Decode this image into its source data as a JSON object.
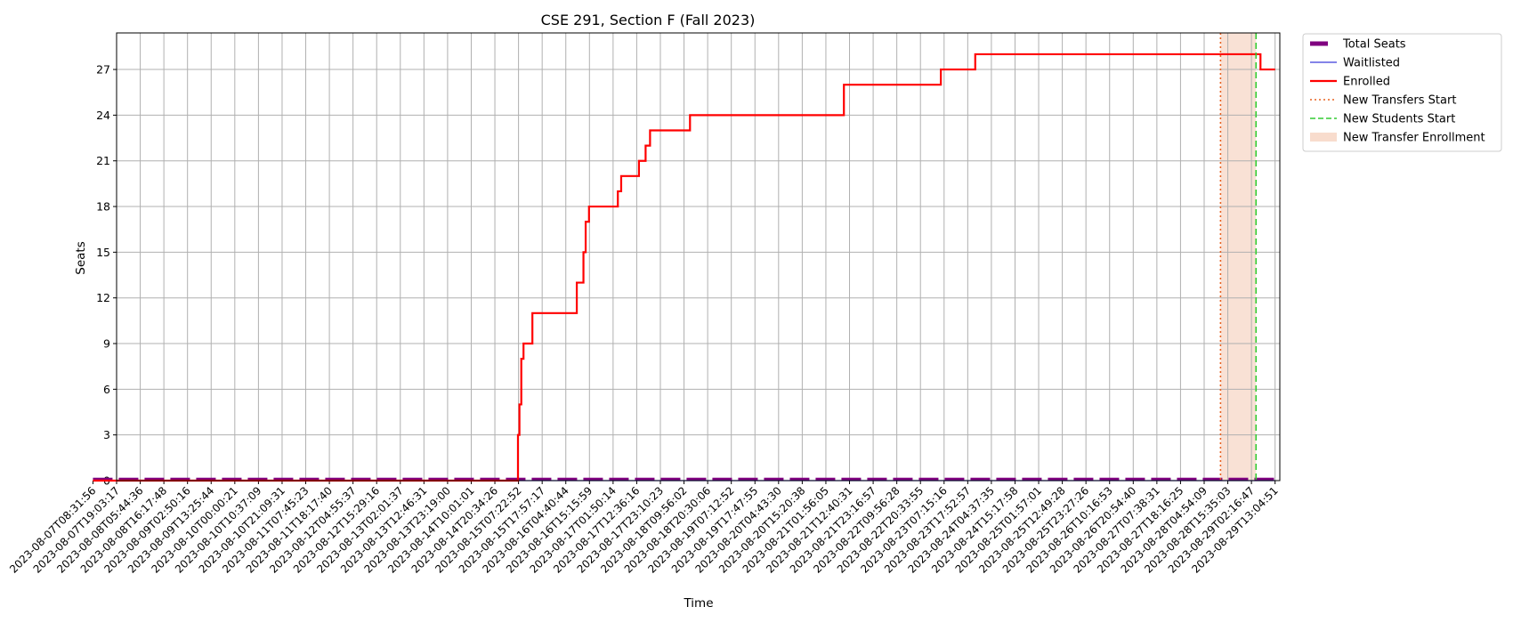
{
  "chart_data": {
    "type": "line",
    "title": "CSE 291, Section F (Fall 2023)",
    "xlabel": "Time",
    "ylabel": "Seats",
    "ylim": [
      0,
      29.4
    ],
    "yticks": [
      0,
      3,
      6,
      9,
      12,
      15,
      18,
      21,
      24,
      27
    ],
    "grid": true,
    "legend_position": "outside top-right",
    "x_ticks": [
      "2023-08-07T08:31:56",
      "2023-08-07T19:03:17",
      "2023-08-08T05:44:36",
      "2023-08-08T16:17:48",
      "2023-08-09T02:50:16",
      "2023-08-09T13:25:44",
      "2023-08-10T00:00:21",
      "2023-08-10T10:37:09",
      "2023-08-10T21:09:31",
      "2023-08-11T07:45:23",
      "2023-08-11T18:17:40",
      "2023-08-12T04:55:37",
      "2023-08-12T15:29:16",
      "2023-08-13T02:01:37",
      "2023-08-13T12:46:31",
      "2023-08-13T23:19:00",
      "2023-08-14T10:01:01",
      "2023-08-14T20:34:26",
      "2023-08-15T07:22:52",
      "2023-08-15T17:57:17",
      "2023-08-16T04:40:44",
      "2023-08-16T15:15:59",
      "2023-08-17T01:50:14",
      "2023-08-17T12:36:16",
      "2023-08-17T23:10:23",
      "2023-08-18T09:56:02",
      "2023-08-18T20:30:06",
      "2023-08-19T07:12:52",
      "2023-08-19T17:47:55",
      "2023-08-20T04:43:30",
      "2023-08-20T15:20:38",
      "2023-08-21T01:56:05",
      "2023-08-21T12:40:31",
      "2023-08-21T23:16:57",
      "2023-08-22T09:56:28",
      "2023-08-22T20:33:55",
      "2023-08-23T07:15:16",
      "2023-08-23T17:52:57",
      "2023-08-24T04:37:35",
      "2023-08-24T15:17:58",
      "2023-08-25T01:57:01",
      "2023-08-25T12:49:28",
      "2023-08-25T23:27:26",
      "2023-08-26T10:16:53",
      "2023-08-26T20:54:40",
      "2023-08-27T07:38:31",
      "2023-08-27T18:16:25",
      "2023-08-28T04:54:09",
      "2023-08-28T15:35:03",
      "2023-08-29T02:16:47",
      "2023-08-29T13:04:51"
    ],
    "x_range": [
      "2023-08-07T08:31:56",
      "2023-08-29T13:04:51"
    ],
    "series": [
      {
        "name": "Total Seats",
        "color": "#800080",
        "style": "dashed-thick",
        "points": [
          [
            "2023-08-07T08:31:56",
            0
          ],
          [
            "2023-08-29T13:04:51",
            0
          ]
        ]
      },
      {
        "name": "Waitlisted",
        "color": "#3b3bd9",
        "style": "solid-thin",
        "points": [
          [
            "2023-08-07T08:31:56",
            0
          ],
          [
            "2023-08-29T13:04:51",
            0
          ]
        ]
      },
      {
        "name": "Enrolled",
        "color": "#ff0000",
        "style": "steps",
        "points": [
          [
            "2023-08-07T08:31:56",
            0
          ],
          [
            "2023-08-15T07:22:52",
            0
          ],
          [
            "2023-08-15T08:00:00",
            3
          ],
          [
            "2023-08-15T08:40:00",
            5
          ],
          [
            "2023-08-15T09:30:00",
            8
          ],
          [
            "2023-08-15T10:30:00",
            9
          ],
          [
            "2023-08-15T14:30:00",
            11
          ],
          [
            "2023-08-16T10:30:00",
            13
          ],
          [
            "2023-08-16T13:30:00",
            15
          ],
          [
            "2023-08-16T14:30:00",
            17
          ],
          [
            "2023-08-16T16:00:00",
            18
          ],
          [
            "2023-08-17T05:00:00",
            19
          ],
          [
            "2023-08-17T06:30:00",
            20
          ],
          [
            "2023-08-17T14:30:00",
            21
          ],
          [
            "2023-08-17T17:30:00",
            22
          ],
          [
            "2023-08-17T19:30:00",
            23
          ],
          [
            "2023-08-18T13:30:00",
            24
          ],
          [
            "2023-08-21T10:50:00",
            26
          ],
          [
            "2023-08-23T06:30:00",
            27
          ],
          [
            "2023-08-23T22:00:00",
            28
          ],
          [
            "2023-08-29T06:30:00",
            27
          ],
          [
            "2023-08-29T13:04:51",
            27
          ]
        ]
      }
    ],
    "vlines": [
      {
        "name": "New Transfers Start",
        "x": "2023-08-28T12:30:00",
        "color": "#e8611f",
        "style": "dotted"
      },
      {
        "name": "New Students Start",
        "x": "2023-08-29T04:30:00",
        "color": "#33cc33",
        "style": "dashed"
      }
    ],
    "spans": [
      {
        "name": "New Transfer Enrollment",
        "x0": "2023-08-28T12:30:00",
        "x1": "2023-08-29T04:30:00",
        "color": "#f4c4ac"
      }
    ],
    "legend": [
      {
        "label": "Total Seats",
        "kind": "thick",
        "color": "#800080"
      },
      {
        "label": "Waitlisted",
        "kind": "line",
        "color": "#3b3bd9"
      },
      {
        "label": "Enrolled",
        "kind": "line2",
        "color": "#ff0000"
      },
      {
        "label": "New Transfers Start",
        "kind": "dotted",
        "color": "#e8611f"
      },
      {
        "label": "New Students Start",
        "kind": "dashed",
        "color": "#33cc33"
      },
      {
        "label": "New Transfer Enrollment",
        "kind": "patch",
        "color": "#f4c4ac"
      }
    ]
  }
}
